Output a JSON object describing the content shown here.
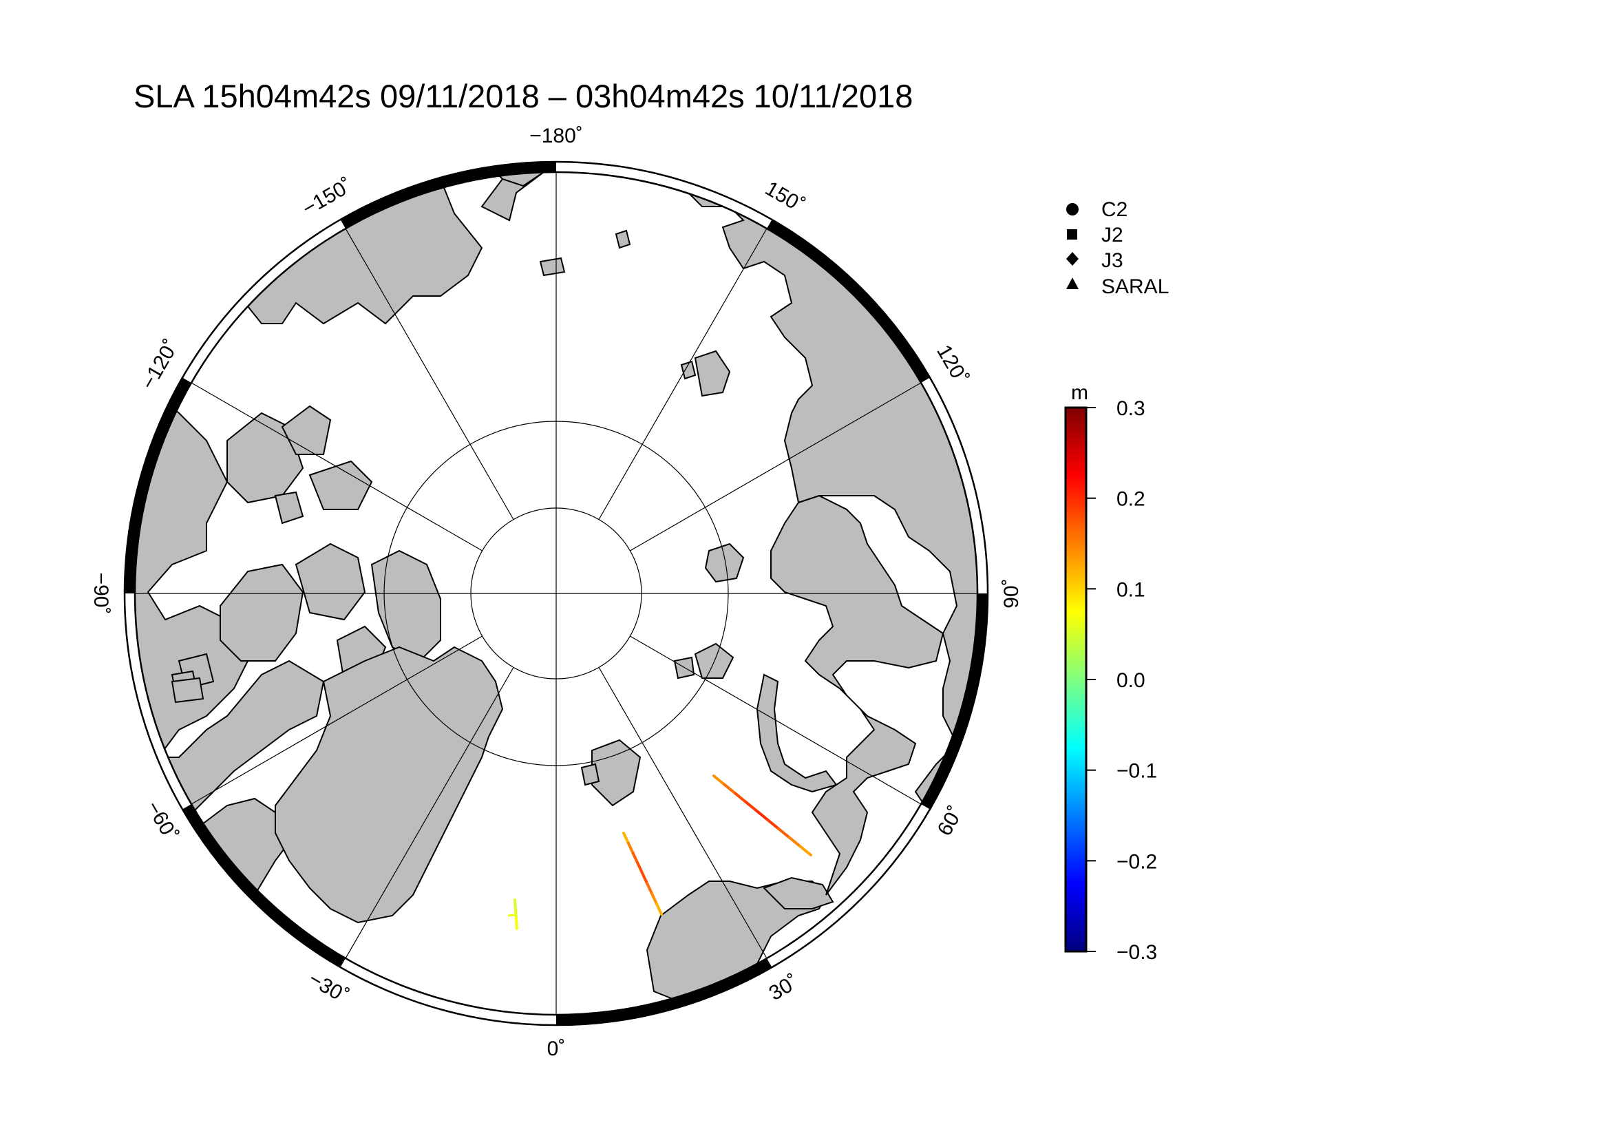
{
  "title": "SLA 15h04m42s 09/11/2018 – 03h04m42s 10/11/2018",
  "map": {
    "projection": "polar-stereographic-north",
    "land_color": "#bdbdbd",
    "meridians": [
      -180,
      -150,
      -120,
      -90,
      -60,
      -30,
      0,
      30,
      60,
      90,
      120,
      150
    ],
    "parallels_inner_count": 2,
    "lon_labels": [
      {
        "lon": -180,
        "text": "−180˚"
      },
      {
        "lon": -150,
        "text": "−150˚"
      },
      {
        "lon": -120,
        "text": "−120˚"
      },
      {
        "lon": -90,
        "text": "−90˚"
      },
      {
        "lon": -60,
        "text": "−60˚"
      },
      {
        "lon": -30,
        "text": "−30˚"
      },
      {
        "lon": 0,
        "text": "0˚"
      },
      {
        "lon": 30,
        "text": "30˚"
      },
      {
        "lon": 60,
        "text": "60˚"
      },
      {
        "lon": 90,
        "text": "90˚"
      },
      {
        "lon": 120,
        "text": "120˚"
      },
      {
        "lon": 150,
        "text": "150˚"
      }
    ]
  },
  "legend": {
    "items": [
      {
        "symbol": "circle-icon",
        "label": "C2"
      },
      {
        "symbol": "square-icon",
        "label": "J2"
      },
      {
        "symbol": "diamond-icon",
        "label": "J3"
      },
      {
        "symbol": "triangle-icon",
        "label": "SARAL"
      }
    ]
  },
  "colorbar": {
    "unit": "m",
    "min": -0.3,
    "max": 0.3,
    "ticks": [
      "0.3",
      "0.2",
      "0.1",
      "0.0",
      "−0.1",
      "−0.2",
      "−0.3"
    ],
    "colors": [
      "#00007f",
      "#0000ff",
      "#007fff",
      "#00ffff",
      "#7fff7f",
      "#ffff00",
      "#ff7f00",
      "#ff0000",
      "#7f0000"
    ]
  },
  "tracks": [
    {
      "name": "track-1",
      "values": [
        0.14,
        0.16,
        0.18,
        0.19,
        0.2,
        0.19,
        0.17,
        0.15,
        0.13
      ]
    },
    {
      "name": "track-2",
      "values": [
        0.12,
        0.15,
        0.17,
        0.18,
        0.18,
        0.16,
        0.14,
        0.12
      ]
    },
    {
      "name": "track-3",
      "values": [
        0.05,
        0.06,
        0.07
      ]
    }
  ]
}
